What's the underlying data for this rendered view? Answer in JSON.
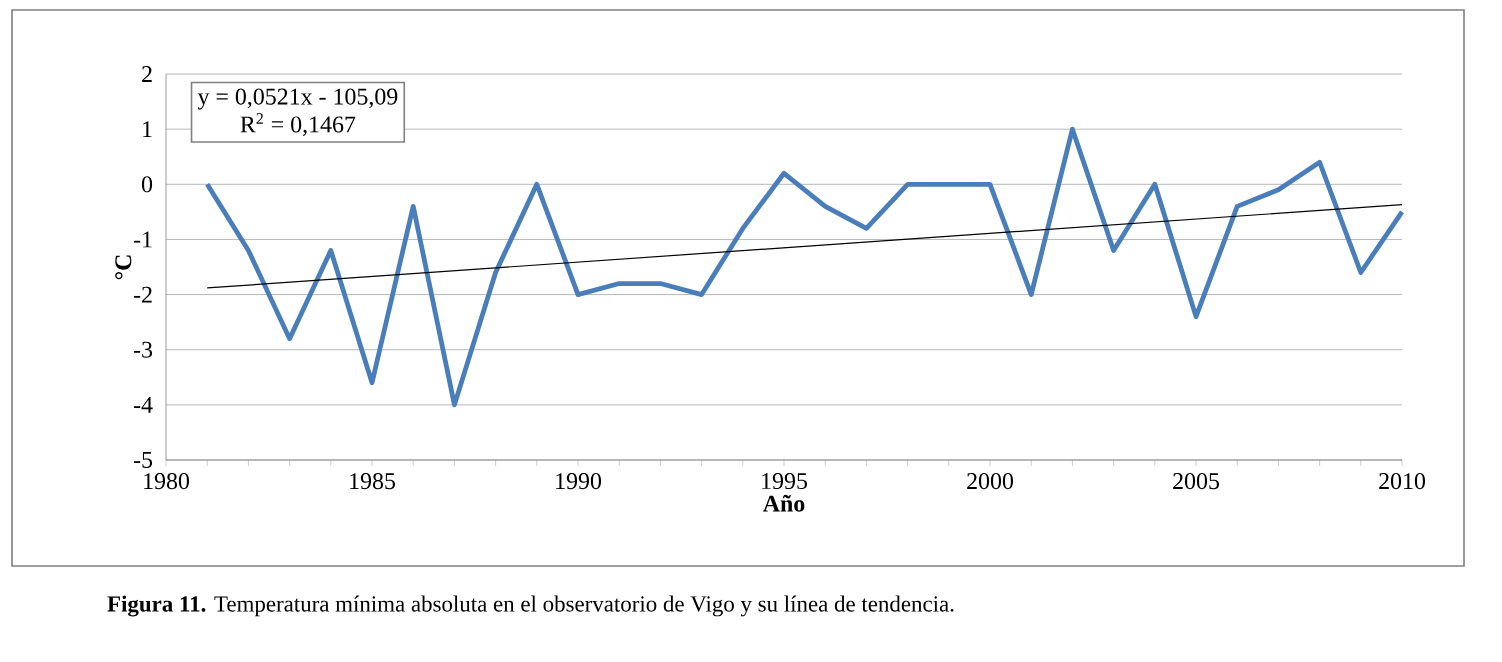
{
  "chart_data": {
    "type": "line",
    "xlabel": "Año",
    "ylabel": "°C",
    "x": [
      1981,
      1982,
      1983,
      1984,
      1985,
      1986,
      1987,
      1988,
      1989,
      1990,
      1991,
      1992,
      1993,
      1994,
      1995,
      1996,
      1997,
      1998,
      1999,
      2000,
      2001,
      2002,
      2003,
      2004,
      2005,
      2006,
      2007,
      2008,
      2009,
      2010
    ],
    "series": [
      {
        "color": "#4a7ebb",
        "values": [
          0,
          -1.2,
          -2.8,
          -1.2,
          -3.6,
          -0.4,
          -4,
          -1.6,
          0,
          -2,
          -1.8,
          -1.8,
          -2,
          -0.8,
          0.2,
          -0.4,
          -0.8,
          0,
          0,
          0,
          -2,
          1,
          -1.2,
          0,
          -2.4,
          -0.4,
          -0.1,
          0.4,
          -1.6,
          -0.5
        ]
      },
      {
        "type": "line",
        "color": "#000000",
        "x": [
          1981,
          2010
        ],
        "values": [
          -1.88,
          -0.37
        ]
      }
    ],
    "xlim": [
      1980,
      2010
    ],
    "xticks": [
      1980,
      1985,
      1990,
      1995,
      2000,
      2005,
      2010
    ],
    "ylim": [
      -5,
      2
    ],
    "yticks": [
      -5,
      -4,
      -3,
      -2,
      -1,
      0,
      1,
      2
    ],
    "grid": "y",
    "annotations": [
      "y = 0,0521x - 105,09",
      "R$^{2}$ = 0,1467",
      "**Figura 11.** Temperatura mínima absoluta en el observatorio de Vigo y su línea de tendencia."
    ]
  }
}
